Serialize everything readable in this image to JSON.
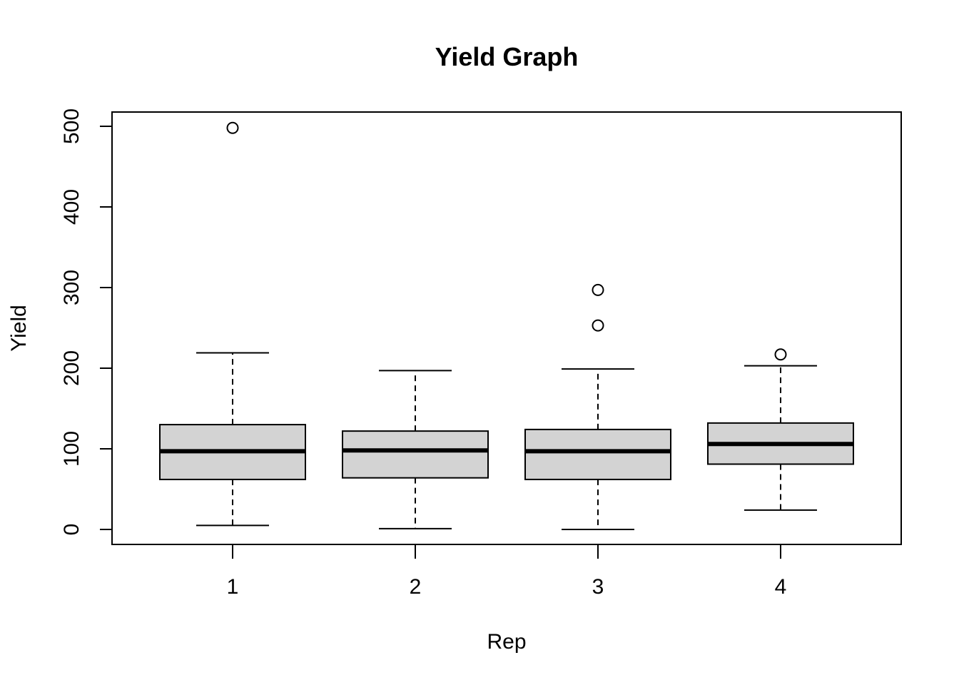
{
  "chart_data": {
    "type": "box",
    "title": "Yield Graph",
    "xlabel": "Rep",
    "ylabel": "Yield",
    "ylim": [
      -20,
      520
    ],
    "yticks": [
      0,
      100,
      200,
      300,
      400,
      500
    ],
    "grid": false,
    "box_color": "#d3d3d3",
    "series": [
      {
        "category": "1",
        "whisker_low": 5,
        "q1": 62,
        "median": 97,
        "q3": 130,
        "whisker_high": 219,
        "outliers": [
          498
        ]
      },
      {
        "category": "2",
        "whisker_low": 1,
        "q1": 64,
        "median": 98,
        "q3": 122,
        "whisker_high": 197,
        "outliers": []
      },
      {
        "category": "3",
        "whisker_low": 0,
        "q1": 62,
        "median": 97,
        "q3": 124,
        "whisker_high": 199,
        "outliers": [
          253,
          297
        ]
      },
      {
        "category": "4",
        "whisker_low": 24,
        "q1": 81,
        "median": 106,
        "q3": 132,
        "whisker_high": 203,
        "outliers": [
          217
        ]
      }
    ]
  }
}
